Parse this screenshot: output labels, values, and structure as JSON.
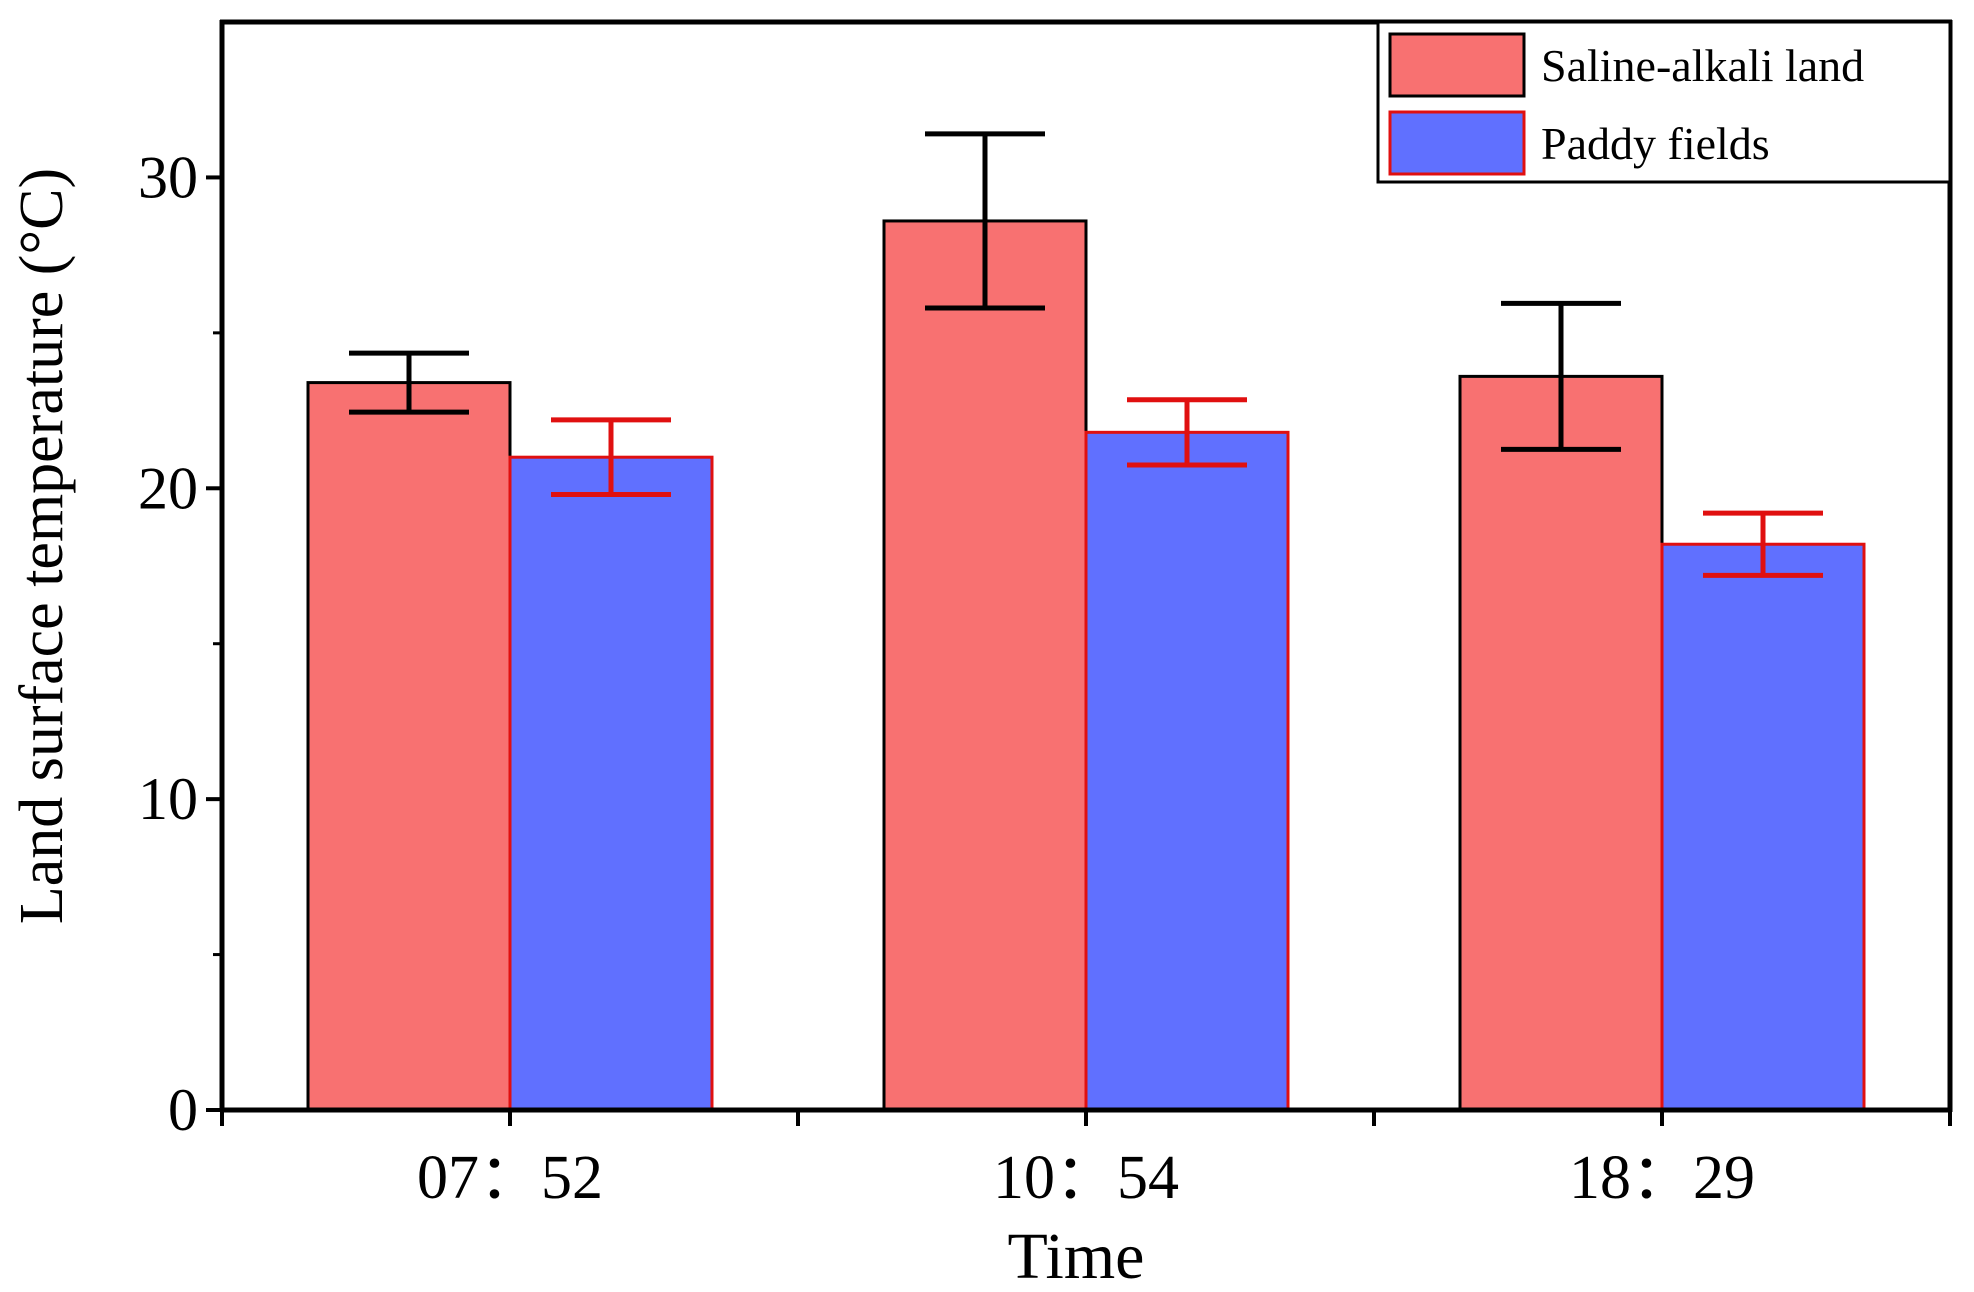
{
  "chart_data": {
    "type": "bar",
    "title": "",
    "xlabel": "Time",
    "ylabel": "Land surface temperature (°C)",
    "categories": [
      "07：52",
      "10：54",
      "18：29"
    ],
    "ylim": [
      0,
      35
    ],
    "yticks": [
      0,
      10,
      20,
      30
    ],
    "ytick_labels": [
      "0",
      "10",
      "20",
      "30"
    ],
    "legend_position": "top-right",
    "series": [
      {
        "name": "Saline-alkali land",
        "values": [
          23.4,
          28.6,
          23.6
        ],
        "error": [
          0.95,
          2.8,
          2.35
        ],
        "fill": "#F87171",
        "stroke": "#000000",
        "error_color": "#000000"
      },
      {
        "name": "Paddy fields",
        "values": [
          21.0,
          21.8,
          18.2
        ],
        "error": [
          1.2,
          1.05,
          1.0
        ],
        "fill": "#6070FF",
        "stroke": "#E01010",
        "error_color": "#E01010"
      }
    ]
  }
}
